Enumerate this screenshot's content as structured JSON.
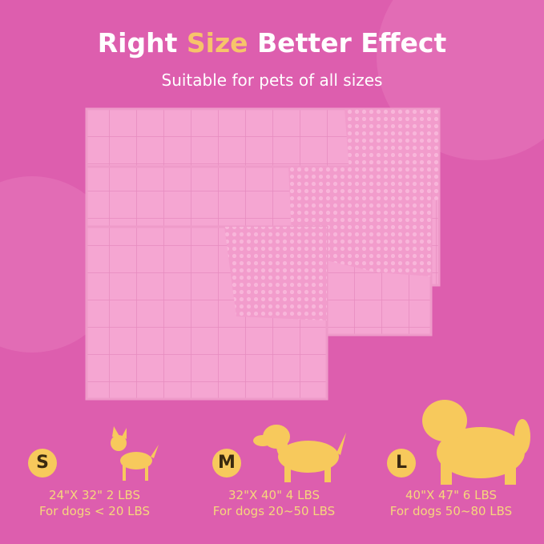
{
  "header": {
    "title": {
      "before": "Right",
      "highlight": "Size",
      "after": "Better Effect"
    },
    "subtitle": "Suitable for pets of all sizes"
  },
  "sizes": [
    {
      "badge": "S",
      "dimensions": "24\"X 32\" 2 LBS",
      "fit": "For dogs < 20 LBS"
    },
    {
      "badge": "M",
      "dimensions": "32\"X 40\" 4 LBS",
      "fit": "For dogs 20~50 LBS"
    },
    {
      "badge": "L",
      "dimensions": "40\"X 47\" 6 LBS",
      "fit": "For dogs 50~80 LBS"
    }
  ]
}
